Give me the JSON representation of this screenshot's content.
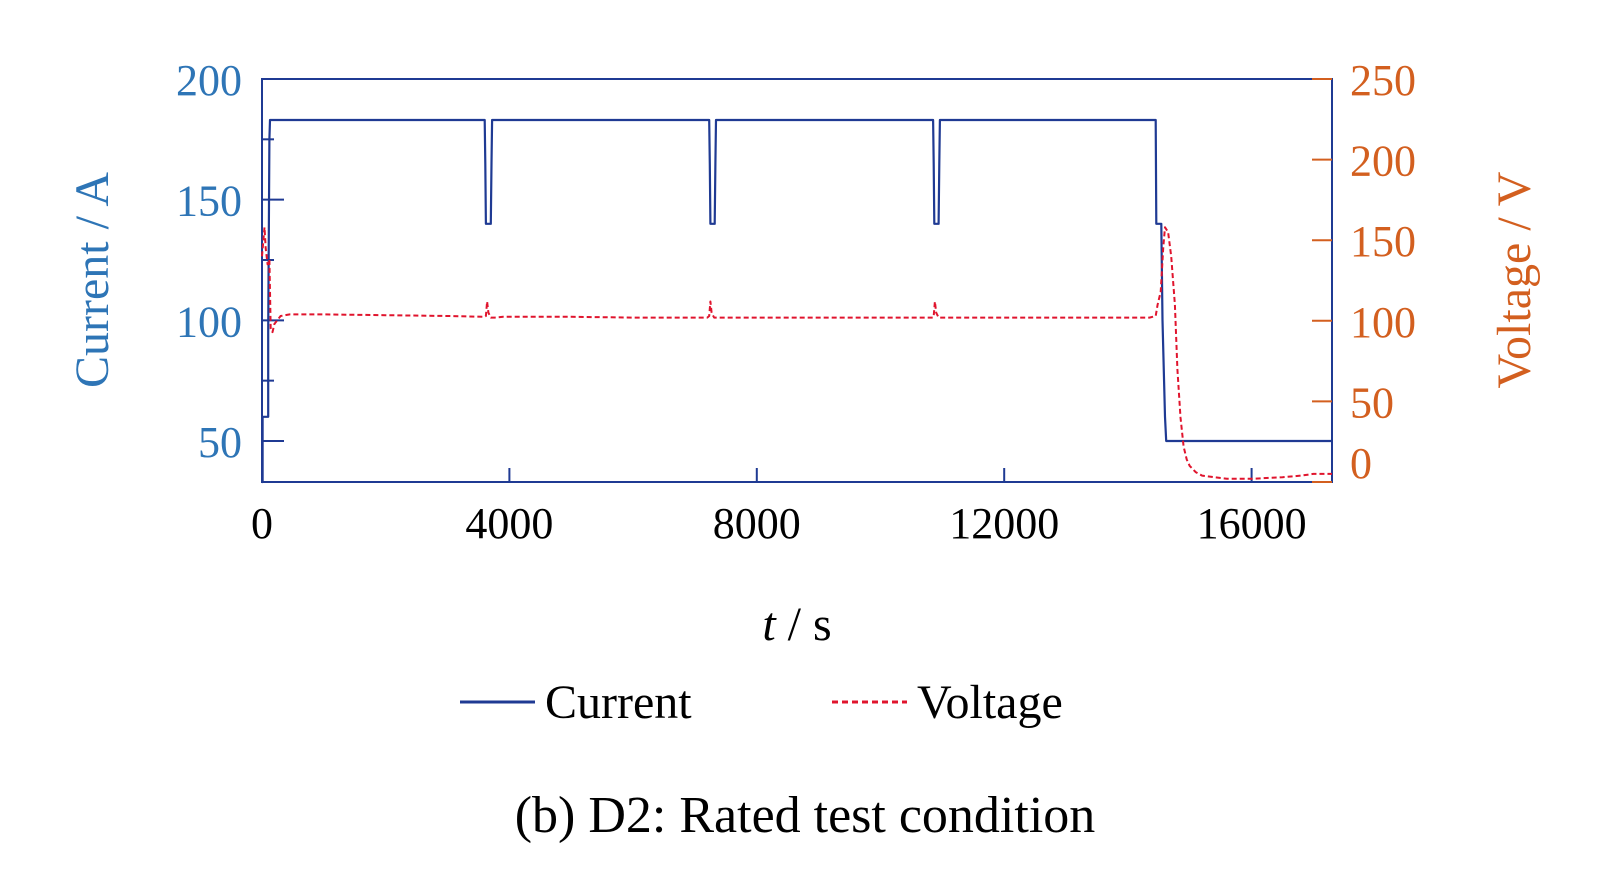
{
  "caption": "(b) D2: Rated test condition",
  "colors": {
    "current_axis": "#2e75b6",
    "voltage_axis": "#d35f1f",
    "current_line": "#1f3a93",
    "voltage_line": "#e0142d",
    "frame": "#1f3a93"
  },
  "chart_data": {
    "type": "line",
    "title": "",
    "xlabel_italic": "t",
    "xlabel_rest": " / s",
    "ylabel_left": "Current / A",
    "ylabel_right": "Voltage / V",
    "xlim": [
      0,
      17300
    ],
    "ylim_left": [
      33,
      200
    ],
    "ylim_right": [
      0,
      250
    ],
    "x_ticks": [
      0,
      4000,
      8000,
      12000,
      16000
    ],
    "x_tick_labels": [
      "0",
      "4000",
      "8000",
      "12000",
      "16000"
    ],
    "y_left_ticks": [
      50,
      100,
      150,
      200
    ],
    "y_left_tick_labels": [
      "50",
      "100",
      "150",
      "200"
    ],
    "y_left_minor_ticks": [
      75,
      125,
      175
    ],
    "y_right_ticks": [
      0,
      50,
      100,
      150,
      200,
      250
    ],
    "y_right_tick_labels": [
      "0",
      "50",
      "100",
      "150",
      "200",
      "250"
    ],
    "legend": [
      "Current",
      "Voltage"
    ],
    "series": [
      {
        "name": "Current",
        "axis": "left",
        "style": "solid",
        "x": [
          0,
          10,
          10,
          100,
          100,
          120,
          130,
          3600,
          3610,
          3620,
          3700,
          3710,
          3720,
          7230,
          7240,
          7250,
          7320,
          7330,
          7340,
          10850,
          10860,
          10870,
          10940,
          10950,
          10960,
          14450,
          14460,
          14540,
          14560,
          14600,
          14620,
          17300
        ],
        "values": [
          33,
          33,
          60,
          60,
          95,
          175,
          183,
          183,
          165,
          140,
          140,
          165,
          183,
          183,
          165,
          140,
          140,
          165,
          183,
          183,
          165,
          140,
          140,
          165,
          183,
          183,
          140,
          140,
          100,
          60,
          50,
          50
        ]
      },
      {
        "name": "Voltage",
        "axis": "right",
        "style": "dashed",
        "x": [
          0,
          40,
          60,
          90,
          120,
          140,
          170,
          200,
          300,
          450,
          1000,
          2000,
          3000,
          3600,
          3620,
          3640,
          3660,
          3700,
          3760,
          3900,
          5000,
          6000,
          7000,
          7200,
          7230,
          7250,
          7270,
          7310,
          7360,
          7500,
          8500,
          10000,
          10850,
          10860,
          10880,
          10900,
          10940,
          11000,
          12000,
          13000,
          14200,
          14350,
          14450,
          14480,
          14530,
          14570,
          14600,
          14650,
          14700,
          14760,
          14800,
          14850,
          14900,
          14950,
          15000,
          15100,
          15200,
          15400,
          15600,
          16000,
          16500,
          16800,
          17000,
          17300
        ],
        "values": [
          140,
          158,
          145,
          135,
          138,
          95,
          93,
          98,
          103,
          104,
          104,
          103.5,
          103,
          102.5,
          103,
          112,
          105,
          102,
          102,
          102.5,
          102.5,
          102,
          102,
          102,
          103,
          112,
          105,
          102,
          102,
          102,
          102,
          102,
          102,
          103,
          112,
          105,
          102,
          102,
          102,
          102,
          102,
          102,
          103,
          110,
          118,
          145,
          158,
          155,
          140,
          110,
          70,
          40,
          22,
          14,
          10,
          6,
          4,
          3,
          2,
          2,
          3,
          4,
          5,
          5
        ]
      }
    ]
  }
}
